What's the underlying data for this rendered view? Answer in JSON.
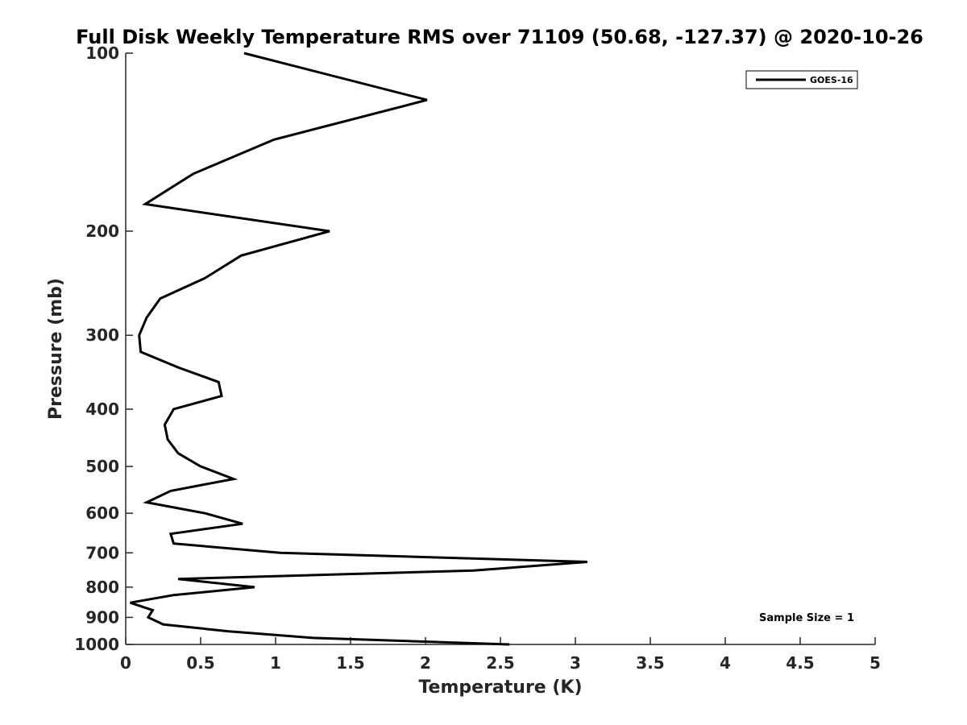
{
  "chart_data": {
    "type": "line",
    "title": "Full Disk Weekly Temperature RMS over 71109 (50.68, -127.37) @ 2020-10-26",
    "xlabel": "Temperature (K)",
    "ylabel": "Pressure (mb)",
    "xlim": [
      0,
      5
    ],
    "ylim": [
      1000,
      100
    ],
    "yscale": "log",
    "y_reversed": true,
    "x_ticks": [
      0,
      0.5,
      1,
      1.5,
      2,
      2.5,
      3,
      3.5,
      4,
      4.5,
      5
    ],
    "x_tick_labels": [
      "0",
      "0.5",
      "1",
      "1.5",
      "2",
      "2.5",
      "3",
      "3.5",
      "4",
      "4.5",
      "5"
    ],
    "y_ticks": [
      100,
      200,
      300,
      400,
      500,
      600,
      700,
      800,
      900,
      1000
    ],
    "y_tick_labels": [
      "100",
      "200",
      "300",
      "400",
      "500",
      "600",
      "700",
      "800",
      "900",
      "1000"
    ],
    "grid": false,
    "legend_position": "top-right",
    "annotation": "Sample Size = 1",
    "series": [
      {
        "name": "GOES-16",
        "color": "#000000",
        "points": [
          [
            0.79,
            100
          ],
          [
            2.01,
            120
          ],
          [
            0.99,
            140
          ],
          [
            0.45,
            160
          ],
          [
            0.13,
            180
          ],
          [
            1.36,
            200
          ],
          [
            0.77,
            220
          ],
          [
            0.53,
            240
          ],
          [
            0.23,
            260
          ],
          [
            0.14,
            280
          ],
          [
            0.09,
            300
          ],
          [
            0.1,
            320
          ],
          [
            0.35,
            340
          ],
          [
            0.62,
            360
          ],
          [
            0.64,
            380
          ],
          [
            0.32,
            400
          ],
          [
            0.26,
            425
          ],
          [
            0.28,
            450
          ],
          [
            0.35,
            475
          ],
          [
            0.5,
            500
          ],
          [
            0.72,
            525
          ],
          [
            0.3,
            550
          ],
          [
            0.14,
            575
          ],
          [
            0.53,
            600
          ],
          [
            0.78,
            625
          ],
          [
            0.3,
            650
          ],
          [
            0.32,
            675
          ],
          [
            1.03,
            700
          ],
          [
            3.08,
            725
          ],
          [
            2.32,
            750
          ],
          [
            0.35,
            775
          ],
          [
            0.86,
            800
          ],
          [
            0.32,
            825
          ],
          [
            0.03,
            850
          ],
          [
            0.18,
            875
          ],
          [
            0.15,
            900
          ],
          [
            0.25,
            925
          ],
          [
            0.68,
            950
          ],
          [
            1.25,
            975
          ],
          [
            2.56,
            1000
          ]
        ]
      }
    ]
  }
}
